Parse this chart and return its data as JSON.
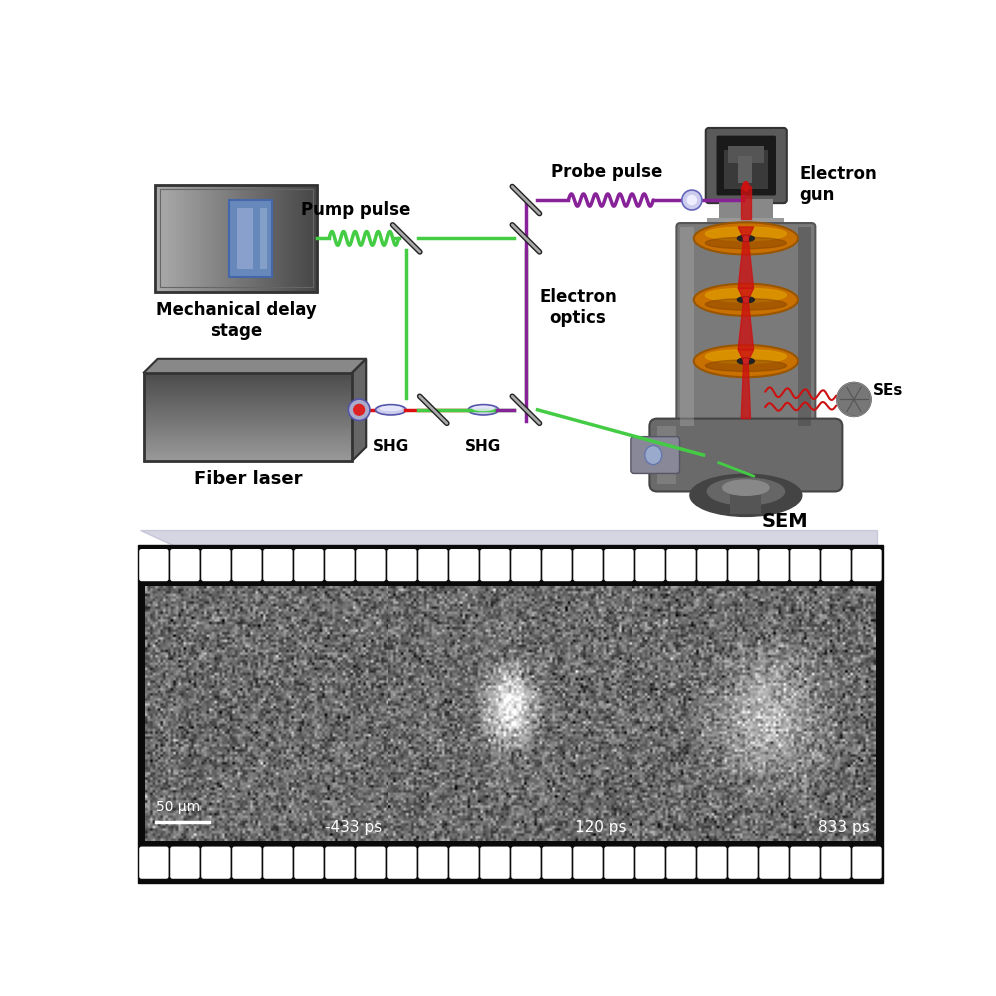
{
  "bg_color": "#ffffff",
  "film_labels": [
    "-433 ps",
    "120 ps",
    "833 ps"
  ],
  "scale_bar_text": "50 μm",
  "sem_label": "SEM",
  "fiber_laser_label": "Fiber laser",
  "mech_delay_label": "Mechanical delay\nstage",
  "pump_pulse_label": "Pump pulse",
  "probe_pulse_label": "Probe pulse",
  "electron_gun_label": "Electron\ngun",
  "electron_optics_label": "Electron\noptics",
  "shg1_label": "SHG",
  "shg2_label": "SHG",
  "ses_label": "SEs",
  "green_color": "#44cc44",
  "purple_color": "#882299",
  "red_beam_color": "#dd2222",
  "orange_color": "#dd7700",
  "dark_gray": "#555555",
  "mid_gray": "#888888",
  "sem_body_color": "#777777",
  "film_black": "#0a0a0a",
  "film_hole_color": "#ffffff",
  "triangle_color": "#9999bb"
}
